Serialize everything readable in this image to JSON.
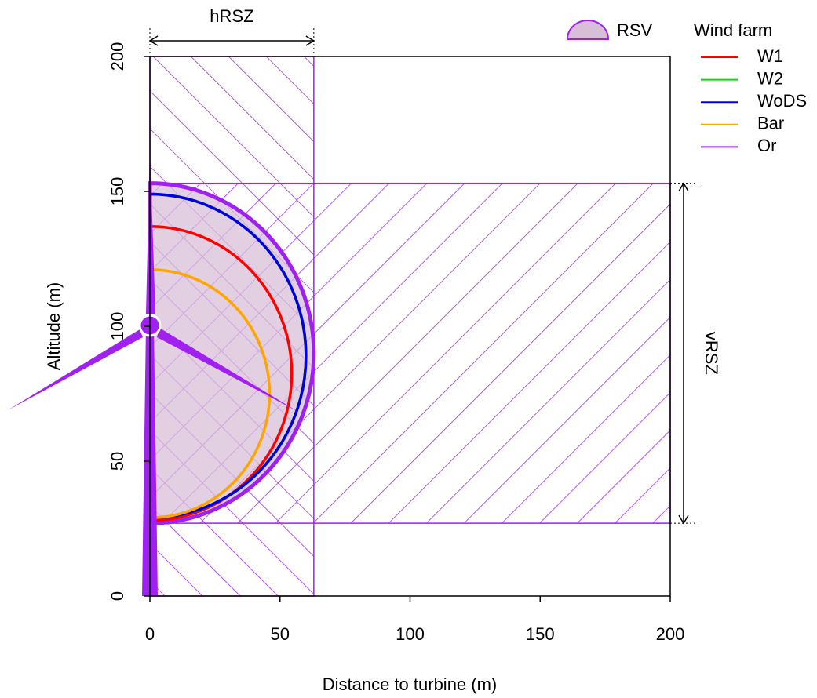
{
  "chart_data": {
    "type": "rotor-swept",
    "x_label": "Distance to turbine (m)",
    "y_label": "Altitude (m)",
    "xlim": [
      0,
      200
    ],
    "ylim": [
      0,
      200
    ],
    "xticks": [
      0,
      50,
      100,
      150,
      200
    ],
    "yticks": [
      0,
      50,
      100,
      150,
      200
    ],
    "hRSZ": {
      "label": "hRSZ",
      "x": [
        0,
        63
      ],
      "color": "#a020f0"
    },
    "vRSZ": {
      "label": "vRSZ",
      "y": [
        27,
        153
      ],
      "color": "#a020f0"
    },
    "RSV": {
      "label": "RSV",
      "center": 90,
      "radius": 63,
      "color": "#a020f0",
      "fill": "#d8bfd8"
    },
    "legend_title": "Wind farm",
    "series": [
      {
        "name": "W1",
        "color": "#ff0000",
        "center": 82.5,
        "radius": 54.5
      },
      {
        "name": "W2",
        "color": "#00e000",
        "center": 89,
        "radius": 60
      },
      {
        "name": "WoDS",
        "color": "#0000e0",
        "center": 89,
        "radius": 60
      },
      {
        "name": "Bar",
        "color": "#ffa500",
        "center": 75,
        "radius": 46
      },
      {
        "name": "Or",
        "color": "#a020f0",
        "center": 90,
        "radius": 63
      }
    ]
  }
}
